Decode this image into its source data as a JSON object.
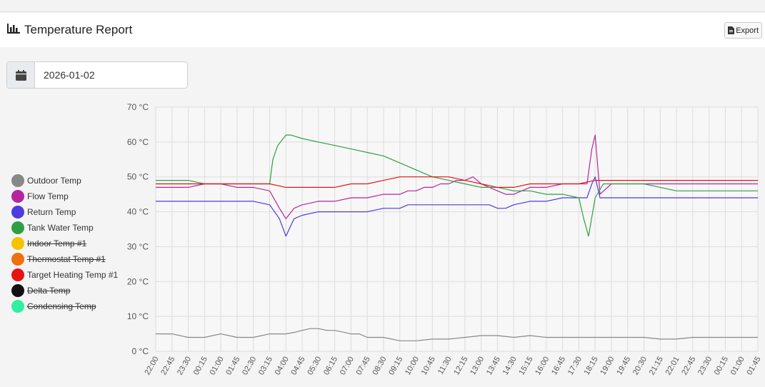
{
  "header": {
    "title": "Temperature Report",
    "title_icon": "bar-chart-icon",
    "export_label": "Export",
    "export_icon": "file-icon"
  },
  "date_picker": {
    "icon": "calendar-icon",
    "value": "2026-01-02"
  },
  "legend": [
    {
      "label": "Outdoor Temp",
      "color": "#888888",
      "hidden": false
    },
    {
      "label": "Flow Temp",
      "color": "#b5269e",
      "hidden": false
    },
    {
      "label": "Return Temp",
      "color": "#4d3be0",
      "hidden": false
    },
    {
      "label": "Tank Water Temp",
      "color": "#2ea043",
      "hidden": false
    },
    {
      "label": "Indoor Temp #1",
      "color": "#f7c200",
      "hidden": true
    },
    {
      "label": "Thermostat Temp #1",
      "color": "#f07010",
      "hidden": true
    },
    {
      "label": "Target Heating Temp #1",
      "color": "#e41414",
      "hidden": false
    },
    {
      "label": "Delta Temp",
      "color": "#111111",
      "hidden": true
    },
    {
      "label": "Condensing Temp",
      "color": "#2ef0a0",
      "hidden": true
    }
  ],
  "chart_data": {
    "type": "line",
    "y_ticks": [
      "70 °C",
      "60 °C",
      "50 °C",
      "40 °C",
      "30 °C",
      "20 °C",
      "10 °C",
      "0 °C"
    ],
    "ylim": [
      0,
      70
    ],
    "x_ticks": [
      "22:00",
      "22:45",
      "23:30",
      "00:15",
      "01:00",
      "01:45",
      "02:30",
      "03:15",
      "04:00",
      "04:45",
      "05:30",
      "06:15",
      "07:00",
      "07:45",
      "08:30",
      "09:15",
      "10:00",
      "10:45",
      "11:30",
      "12:15",
      "13:00",
      "13:45",
      "14:30",
      "15:15",
      "16:00",
      "16:45",
      "17:30",
      "18:15",
      "19:00",
      "19:45",
      "20:30",
      "21:15",
      "22:01",
      "22:45",
      "23:30",
      "00:15",
      "01:00",
      "01:45"
    ],
    "grid": true,
    "series": [
      {
        "name": "Outdoor Temp",
        "color": "#888888",
        "x": [
          0,
          1,
          2,
          3,
          4,
          5,
          6,
          7,
          8,
          8.6,
          9,
          9.5,
          10,
          10.5,
          11,
          11.5,
          12,
          12.5,
          13,
          14,
          15,
          16,
          17,
          18,
          19,
          20,
          21,
          22,
          23,
          24,
          25,
          26,
          27,
          28,
          29,
          30,
          31,
          32,
          33,
          34,
          35,
          36,
          37
        ],
        "y": [
          5,
          5,
          4,
          4,
          5,
          4,
          4,
          5,
          5,
          5.5,
          6,
          6.5,
          6.5,
          6,
          6,
          5.5,
          5,
          5,
          4,
          4,
          3,
          3,
          3.5,
          3.5,
          4,
          4.5,
          4.5,
          4,
          4.5,
          4,
          4,
          4,
          4,
          4,
          4,
          4,
          3.5,
          3.5,
          4,
          4,
          4,
          4,
          4
        ]
      },
      {
        "name": "Flow Temp",
        "color": "#b5269e",
        "x": [
          0,
          1,
          2,
          3,
          4,
          5,
          6,
          7,
          7.6,
          8,
          8.5,
          9,
          10,
          11,
          12,
          13,
          14,
          15,
          15.5,
          16,
          16.5,
          17,
          17.5,
          18,
          18.5,
          19,
          19.5,
          20,
          20.5,
          21,
          21.5,
          22,
          23,
          24,
          25,
          26,
          26.5,
          26.8,
          27,
          27.3,
          28,
          29,
          30,
          31,
          32,
          33,
          34,
          35,
          36,
          37
        ],
        "y": [
          47,
          47,
          47,
          48,
          48,
          47,
          47,
          46,
          41,
          38,
          41,
          42,
          43,
          43,
          44,
          44,
          45,
          45,
          46,
          46,
          47,
          47,
          48,
          48,
          49,
          49,
          50,
          48,
          47,
          46,
          45,
          45,
          47,
          47,
          48,
          48,
          48,
          58,
          62,
          45,
          48,
          48,
          48,
          48,
          48,
          48,
          48,
          48,
          48,
          48
        ]
      },
      {
        "name": "Return Temp",
        "color": "#4d3be0",
        "x": [
          0,
          1,
          2,
          3,
          4,
          5,
          6,
          7,
          7.6,
          8,
          8.5,
          9,
          10,
          11,
          12,
          13,
          14,
          15,
          15.5,
          16,
          16.5,
          17,
          17.5,
          18,
          18.5,
          19,
          19.5,
          20,
          20.5,
          21,
          21.5,
          22,
          23,
          24,
          25,
          26,
          26.5,
          26.8,
          27,
          27.3,
          28,
          29,
          30,
          31,
          32,
          33,
          34,
          35,
          36,
          37
        ],
        "y": [
          43,
          43,
          43,
          43,
          43,
          43,
          43,
          42,
          38,
          33,
          38,
          39,
          40,
          40,
          40,
          40,
          41,
          41,
          42,
          42,
          42,
          42,
          42,
          42,
          42,
          42,
          42,
          42,
          42,
          41,
          41,
          42,
          43,
          43,
          44,
          44,
          44,
          48,
          50,
          44,
          44,
          44,
          44,
          44,
          44,
          44,
          44,
          44,
          44,
          44
        ]
      },
      {
        "name": "Tank Water Temp",
        "color": "#2ea043",
        "x": [
          0,
          1,
          2,
          3,
          4,
          5,
          6,
          7,
          7.2,
          7.5,
          8,
          8.3,
          9,
          10,
          11,
          12,
          13,
          14,
          15,
          16,
          17,
          18,
          19,
          20,
          21,
          22,
          23,
          24,
          25,
          26,
          26.3,
          26.6,
          27,
          27.5,
          28,
          29,
          30,
          31,
          32,
          33,
          34,
          35,
          36,
          37
        ],
        "y": [
          49,
          49,
          49,
          48,
          48,
          48,
          48,
          48,
          55,
          59,
          62,
          62,
          61,
          60,
          59,
          58,
          57,
          56,
          54,
          52,
          50,
          49,
          48,
          47,
          47,
          46,
          46,
          45,
          45,
          44,
          38,
          33,
          44,
          48,
          48,
          48,
          48,
          47,
          46,
          46,
          46,
          46,
          46,
          46
        ]
      },
      {
        "name": "Target Heating Temp #1",
        "color": "#e41414",
        "x": [
          0,
          1,
          2,
          3,
          4,
          5,
          6,
          7,
          8,
          9,
          10,
          11,
          12,
          13,
          14,
          15,
          16,
          17,
          18,
          19,
          20,
          21,
          22,
          23,
          24,
          25,
          26,
          27,
          28,
          29,
          30,
          31,
          32,
          33,
          34,
          35,
          36,
          37
        ],
        "y": [
          48,
          48,
          48,
          48,
          48,
          48,
          48,
          48,
          47,
          47,
          47,
          47,
          48,
          48,
          49,
          50,
          50,
          50,
          50,
          49,
          48,
          47,
          47,
          48,
          48,
          48,
          48,
          49,
          49,
          49,
          49,
          49,
          49,
          49,
          49,
          49,
          49,
          49
        ]
      }
    ]
  }
}
